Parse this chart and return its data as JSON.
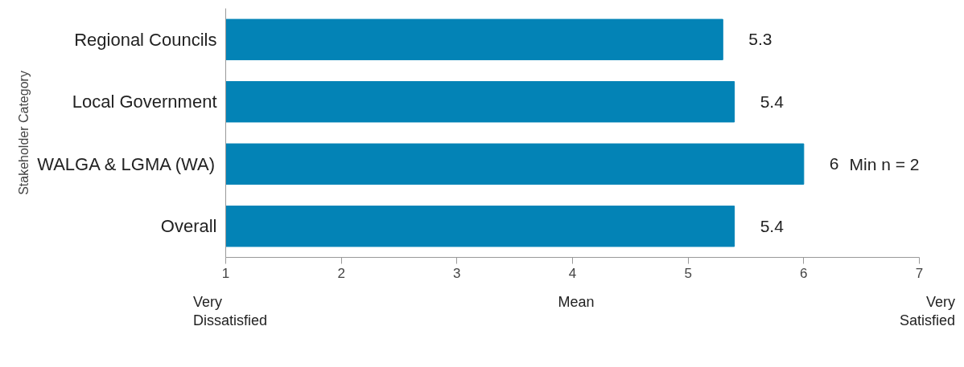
{
  "chart_data": {
    "type": "bar",
    "orientation": "horizontal",
    "ylabel": "Stakeholder Category",
    "xlabel": "Mean",
    "categories": [
      "Regional Councils",
      "Local Government",
      "WALGA & LGMA (WA)",
      "Overall"
    ],
    "values": [
      5.3,
      5.4,
      6,
      5.4
    ],
    "color": "#0383b6",
    "xlim": [
      1,
      7
    ],
    "xticks": [
      1,
      2,
      3,
      4,
      5,
      6,
      7
    ],
    "grid": false,
    "data_labels": true,
    "annotations": [
      "Very\nDissatisfied",
      "Very\nSatisfied",
      "Min n = 2"
    ]
  }
}
